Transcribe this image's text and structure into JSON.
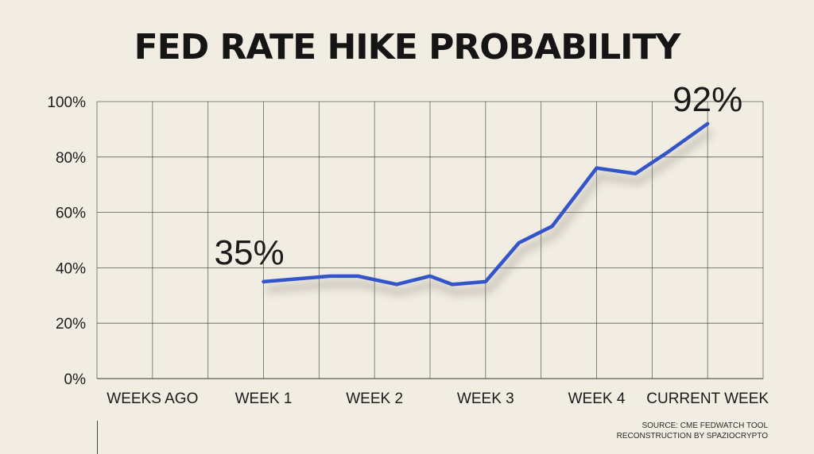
{
  "title": "FED RATE HIKE PROBABILITY",
  "source_lines": [
    "SOURCE: CME FEDWATCH TOOL",
    "RECONSTRUCTION BY SPAZIOCRYPTO"
  ],
  "colors": {
    "line": "#3355c9",
    "background": "#f1ede3",
    "grid": "#3a3a3a"
  },
  "chart_data": {
    "type": "line",
    "title": "FED RATE HIKE PROBABILITY",
    "xlabel": "",
    "ylabel": "",
    "ylim": [
      0,
      100
    ],
    "grid": true,
    "y_ticks": [
      "0%",
      "20%",
      "40%",
      "60%",
      "80%",
      "100%"
    ],
    "y_tick_values": [
      0,
      20,
      40,
      60,
      80,
      100
    ],
    "x_tick_labels": [
      "WEEKS AGO",
      "WEEK 1",
      "WEEK 2",
      "WEEK 3",
      "WEEK 4",
      "CURRENT WEEK"
    ],
    "x_tick_positions": [
      0,
      2,
      4,
      6,
      8,
      10
    ],
    "xlim": [
      -1,
      11
    ],
    "series": [
      {
        "x": [
          2,
          2.6,
          3.2,
          3.7,
          4.4,
          5,
          5.4,
          6.0,
          6.6,
          7.2,
          8,
          8.7,
          9.3,
          10
        ],
        "values": [
          35,
          36,
          37,
          37,
          34,
          37,
          34,
          35,
          49,
          55,
          76,
          74,
          82,
          92
        ]
      }
    ],
    "annotations": [
      {
        "text": "35%",
        "x": 2,
        "y": 35
      },
      {
        "text": "92%",
        "x": 10,
        "y": 92
      }
    ]
  }
}
